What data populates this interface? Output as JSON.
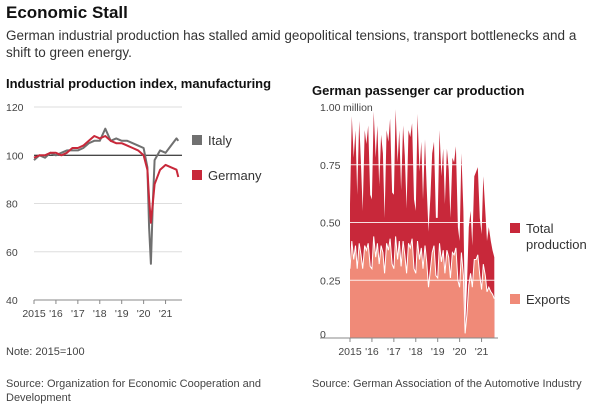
{
  "header": {
    "title": "Economic Stall",
    "subtitle": "German industrial production has stalled amid geopolitical tensions, transport bottlenecks and a shift to green energy."
  },
  "left_chart": {
    "note": "Note: 2015=100",
    "source": "Source: Organization for Economic Cooperation and Development"
  },
  "right_chart": {
    "source": "Source: German Association of the Automotive Industry"
  },
  "chart_data": [
    {
      "type": "line",
      "title": "Industrial production index, manufacturing",
      "xlabel": "",
      "ylabel": "",
      "x_tick_labels": [
        "2015",
        "'16",
        "'17",
        "'18",
        "'19",
        "'20",
        "'21"
      ],
      "y_tick_labels": [
        "120",
        "100",
        "80",
        "60",
        "40"
      ],
      "ylim": [
        40,
        120
      ],
      "xlim": [
        2015,
        2021.75
      ],
      "reference_line": 100,
      "grid": true,
      "legend_position": "right",
      "series": [
        {
          "name": "Italy",
          "color": "#707070",
          "x": [
            2015.0,
            2015.25,
            2015.5,
            2015.75,
            2016.0,
            2016.25,
            2016.5,
            2016.75,
            2017.0,
            2017.25,
            2017.5,
            2017.75,
            2018.0,
            2018.25,
            2018.5,
            2018.75,
            2019.0,
            2019.25,
            2019.5,
            2019.75,
            2020.0,
            2020.17,
            2020.25,
            2020.33,
            2020.42,
            2020.5,
            2020.75,
            2021.0,
            2021.25,
            2021.5,
            2021.58
          ],
          "values": [
            98,
            100,
            99,
            101,
            100,
            101,
            102,
            102,
            102,
            103,
            105,
            106,
            106,
            111,
            106,
            107,
            106,
            106,
            105,
            104,
            103,
            95,
            70,
            55,
            80,
            98,
            102,
            101,
            104,
            107,
            106
          ]
        },
        {
          "name": "Germany",
          "color": "#c8283a",
          "x": [
            2015.0,
            2015.25,
            2015.5,
            2015.75,
            2016.0,
            2016.25,
            2016.5,
            2016.75,
            2017.0,
            2017.25,
            2017.5,
            2017.75,
            2018.0,
            2018.25,
            2018.5,
            2018.75,
            2019.0,
            2019.25,
            2019.5,
            2019.75,
            2020.0,
            2020.17,
            2020.25,
            2020.33,
            2020.42,
            2020.5,
            2020.75,
            2021.0,
            2021.25,
            2021.5,
            2021.58
          ],
          "values": [
            99,
            100,
            100,
            101,
            101,
            100,
            101,
            103,
            103,
            104,
            106,
            108,
            107,
            108,
            106,
            105,
            105,
            104,
            103,
            102,
            100,
            94,
            82,
            72,
            80,
            88,
            94,
            96,
            95,
            94,
            91
          ]
        }
      ]
    },
    {
      "type": "area",
      "title": "German passenger car production",
      "xlabel": "",
      "ylabel": "",
      "unit": "million",
      "x_tick_labels": [
        "2015",
        "'16",
        "'17",
        "'18",
        "'19",
        "'20",
        "'21"
      ],
      "y_tick_labels": [
        "1.00",
        "0.75",
        "0.50",
        "0.25",
        "0"
      ],
      "ylim": [
        0,
        1.0
      ],
      "xlim": [
        2015,
        2021.75
      ],
      "grid": true,
      "legend_position": "right",
      "series": [
        {
          "name": "Total production",
          "color": "#c8283a",
          "x": [
            2015.0,
            2015.08,
            2015.17,
            2015.25,
            2015.33,
            2015.42,
            2015.5,
            2015.58,
            2015.67,
            2015.75,
            2015.83,
            2015.92,
            2016.0,
            2016.08,
            2016.17,
            2016.25,
            2016.33,
            2016.42,
            2016.5,
            2016.58,
            2016.67,
            2016.75,
            2016.83,
            2016.92,
            2017.0,
            2017.08,
            2017.17,
            2017.25,
            2017.33,
            2017.42,
            2017.5,
            2017.58,
            2017.67,
            2017.75,
            2017.83,
            2017.92,
            2018.0,
            2018.08,
            2018.17,
            2018.25,
            2018.33,
            2018.42,
            2018.5,
            2018.58,
            2018.67,
            2018.75,
            2018.83,
            2018.92,
            2019.0,
            2019.08,
            2019.17,
            2019.25,
            2019.33,
            2019.42,
            2019.5,
            2019.58,
            2019.67,
            2019.75,
            2019.83,
            2019.92,
            2020.0,
            2020.08,
            2020.17,
            2020.25,
            2020.33,
            2020.42,
            2020.5,
            2020.58,
            2020.67,
            2020.75,
            2020.83,
            2020.92,
            2021.0,
            2021.08,
            2021.17,
            2021.25,
            2021.33,
            2021.42,
            2021.5,
            2021.58
          ],
          "values": [
            0.58,
            0.96,
            0.78,
            0.9,
            0.62,
            0.94,
            0.75,
            0.55,
            0.9,
            0.84,
            0.92,
            0.62,
            0.6,
            0.98,
            0.78,
            0.92,
            0.66,
            0.88,
            0.8,
            0.52,
            0.9,
            0.85,
            0.95,
            0.63,
            0.62,
            0.99,
            0.76,
            0.9,
            0.64,
            0.92,
            0.79,
            0.56,
            0.9,
            0.87,
            0.93,
            0.6,
            0.55,
            0.97,
            0.72,
            0.85,
            0.6,
            0.86,
            0.65,
            0.46,
            0.62,
            0.8,
            0.85,
            0.52,
            0.52,
            0.9,
            0.7,
            0.82,
            0.58,
            0.82,
            0.73,
            0.52,
            0.78,
            0.76,
            0.83,
            0.48,
            0.42,
            0.8,
            0.55,
            0.04,
            0.22,
            0.48,
            0.55,
            0.4,
            0.7,
            0.72,
            0.74,
            0.52,
            0.45,
            0.7,
            0.55,
            0.42,
            0.48,
            0.42,
            0.38,
            0.35
          ]
        },
        {
          "name": "Exports",
          "color": "#f08a78",
          "x": [
            2015.0,
            2015.08,
            2015.17,
            2015.25,
            2015.33,
            2015.42,
            2015.5,
            2015.58,
            2015.67,
            2015.75,
            2015.83,
            2015.92,
            2016.0,
            2016.08,
            2016.17,
            2016.25,
            2016.33,
            2016.42,
            2016.5,
            2016.58,
            2016.67,
            2016.75,
            2016.83,
            2016.92,
            2017.0,
            2017.08,
            2017.17,
            2017.25,
            2017.33,
            2017.42,
            2017.5,
            2017.58,
            2017.67,
            2017.75,
            2017.83,
            2017.92,
            2018.0,
            2018.08,
            2018.17,
            2018.25,
            2018.33,
            2018.42,
            2018.5,
            2018.58,
            2018.67,
            2018.75,
            2018.83,
            2018.92,
            2019.0,
            2019.08,
            2019.17,
            2019.25,
            2019.33,
            2019.42,
            2019.5,
            2019.58,
            2019.67,
            2019.75,
            2019.83,
            2019.92,
            2020.0,
            2020.08,
            2020.17,
            2020.25,
            2020.33,
            2020.42,
            2020.5,
            2020.58,
            2020.67,
            2020.75,
            2020.83,
            2020.92,
            2021.0,
            2021.08,
            2021.17,
            2021.25,
            2021.33,
            2021.42,
            2021.5,
            2021.58
          ],
          "values": [
            0.3,
            0.42,
            0.34,
            0.4,
            0.3,
            0.41,
            0.36,
            0.3,
            0.4,
            0.38,
            0.41,
            0.31,
            0.3,
            0.44,
            0.35,
            0.41,
            0.32,
            0.4,
            0.37,
            0.28,
            0.41,
            0.38,
            0.43,
            0.32,
            0.3,
            0.44,
            0.34,
            0.42,
            0.31,
            0.42,
            0.36,
            0.28,
            0.41,
            0.39,
            0.43,
            0.3,
            0.28,
            0.42,
            0.34,
            0.39,
            0.3,
            0.4,
            0.33,
            0.22,
            0.3,
            0.37,
            0.4,
            0.27,
            0.26,
            0.41,
            0.33,
            0.38,
            0.28,
            0.38,
            0.35,
            0.26,
            0.37,
            0.36,
            0.39,
            0.25,
            0.22,
            0.37,
            0.27,
            0.02,
            0.1,
            0.23,
            0.28,
            0.22,
            0.34,
            0.34,
            0.36,
            0.27,
            0.21,
            0.32,
            0.27,
            0.2,
            0.22,
            0.2,
            0.19,
            0.17
          ]
        }
      ]
    }
  ]
}
